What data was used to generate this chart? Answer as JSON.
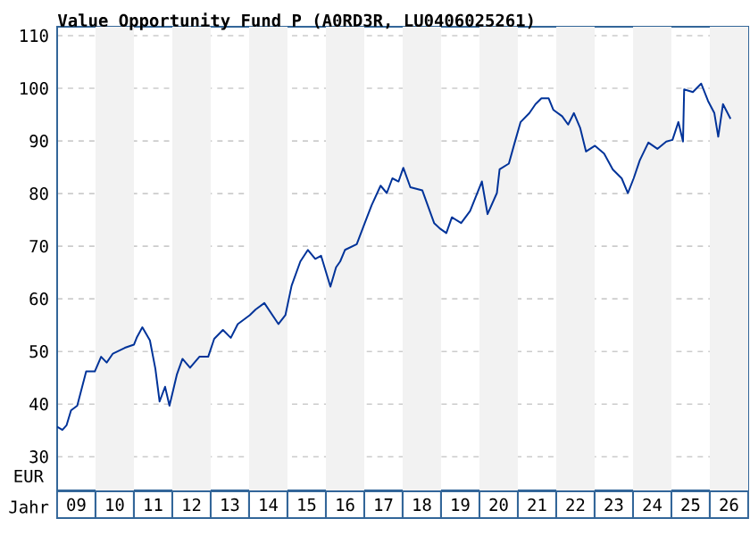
{
  "chart_data": {
    "type": "line",
    "title": "Value Opportunity Fund P (A0RD3R, LU0406025261)",
    "xlabel": "Jahr",
    "ylabel": "EUR",
    "x": [
      "2009-01-01",
      "2009-02-20",
      "2009-04-01",
      "2009-05-13",
      "2009-07-11",
      "2009-10-04",
      "2009-12-25",
      "2010-02-23",
      "2010-04-17",
      "2010-06-15",
      "2010-10-07",
      "2011-01-01",
      "2011-01-27",
      "2011-03-22",
      "2011-06-02",
      "2011-07-24",
      "2011-09-02",
      "2011-10-24",
      "2011-12-05",
      "2012-02-13",
      "2012-04-07",
      "2012-06-18",
      "2012-09-15",
      "2012-12-08",
      "2013-02-03",
      "2013-04-27",
      "2013-07-11",
      "2013-09-15",
      "2014-01-07",
      "2014-03-05",
      "2014-05-26",
      "2014-10-07",
      "2014-12-12",
      "2015-02-09",
      "2015-05-03",
      "2015-07-14",
      "2015-09-22",
      "2015-11-16",
      "2016-02-13",
      "2016-04-07",
      "2016-05-16",
      "2016-07-01",
      "2016-10-21",
      "2017-01-17",
      "2017-03-12",
      "2017-06-05",
      "2017-08-03",
      "2017-09-25",
      "2017-11-23",
      "2018-01-07",
      "2018-03-15",
      "2018-07-07",
      "2018-10-27",
      "2018-12-25",
      "2019-02-20",
      "2019-04-14",
      "2019-07-11",
      "2019-10-04",
      "2020-01-24",
      "2020-03-18",
      "2020-06-15",
      "2020-07-11",
      "2020-10-07",
      "2020-12-02",
      "2021-01-27",
      "2021-04-21",
      "2021-06-18",
      "2021-08-13",
      "2021-10-21",
      "2021-12-05",
      "2022-02-26",
      "2022-04-24",
      "2022-06-18",
      "2022-08-16",
      "2022-10-11",
      "2023-01-04",
      "2023-04-01",
      "2023-06-22",
      "2023-09-15",
      "2023-11-13",
      "2024-01-07",
      "2024-03-05",
      "2024-05-26",
      "2024-08-20",
      "2024-11-13",
      "2025-01-11",
      "2025-03-08",
      "2025-04-21",
      "2025-05-02",
      "2025-07-24",
      "2025-10-11",
      "2025-12-15",
      "2026-02-13",
      "2026-03-22",
      "2026-05-06",
      "2026-07-17"
    ],
    "values": [
      35.7,
      35.1,
      36,
      38.8,
      39.7,
      46.2,
      46.2,
      49,
      47.9,
      49.6,
      50.7,
      51.3,
      52.6,
      54.6,
      52.1,
      46.7,
      40.5,
      43.3,
      39.7,
      45.6,
      48.6,
      46.9,
      49,
      49,
      52.4,
      54.1,
      52.6,
      55.2,
      56.9,
      58,
      59.2,
      55.2,
      56.9,
      62.5,
      67.1,
      69.3,
      67.6,
      68.2,
      62.3,
      66,
      67.1,
      69.3,
      70.4,
      75,
      77.8,
      81.5,
      80.1,
      82.9,
      82.3,
      84.9,
      81.2,
      80.6,
      74.4,
      73.3,
      72.5,
      75.5,
      74.4,
      76.7,
      82.3,
      76.1,
      80.1,
      84.6,
      85.7,
      89.7,
      93.6,
      95.3,
      97,
      98.1,
      98.1,
      95.9,
      94.7,
      93.1,
      95.3,
      92.5,
      88,
      89.1,
      87.6,
      84.6,
      82.9,
      80.1,
      82.9,
      86.3,
      89.7,
      88.5,
      89.9,
      90.2,
      93.6,
      89.9,
      99.8,
      99.3,
      100.9,
      97.6,
      95.3,
      90.8,
      97,
      94.2
    ],
    "color": "#003399",
    "xlim": [
      "2009-01-01",
      "2027-01-01"
    ],
    "xticks": [
      {
        "value": "2009-07-02",
        "label": "09"
      },
      {
        "value": "2010-07-02",
        "label": "10"
      },
      {
        "value": "2011-07-02",
        "label": "11"
      },
      {
        "value": "2012-07-02",
        "label": "12"
      },
      {
        "value": "2013-07-02",
        "label": "13"
      },
      {
        "value": "2014-07-02",
        "label": "14"
      },
      {
        "value": "2015-07-02",
        "label": "15"
      },
      {
        "value": "2016-07-02",
        "label": "16"
      },
      {
        "value": "2017-07-02",
        "label": "17"
      },
      {
        "value": "2018-07-02",
        "label": "18"
      },
      {
        "value": "2019-07-02",
        "label": "19"
      },
      {
        "value": "2020-07-02",
        "label": "20"
      },
      {
        "value": "2021-07-02",
        "label": "21"
      },
      {
        "value": "2022-07-02",
        "label": "22"
      },
      {
        "value": "2023-07-02",
        "label": "23"
      },
      {
        "value": "2024-07-02",
        "label": "24"
      },
      {
        "value": "2025-07-02",
        "label": "25"
      },
      {
        "value": "2026-07-02",
        "label": "26"
      }
    ],
    "ylim": [
      23.6,
      111.7
    ],
    "yticks": [
      30,
      40,
      50,
      60,
      70,
      80,
      90,
      100,
      110
    ],
    "grid": "y",
    "bands": [
      {
        "axis": "x",
        "from": "2010-01-01",
        "to": "2011-01-01",
        "color": "#f2f2f2"
      },
      {
        "axis": "x",
        "from": "2012-01-01",
        "to": "2013-01-01",
        "color": "#f2f2f2"
      },
      {
        "axis": "x",
        "from": "2014-01-01",
        "to": "2015-01-01",
        "color": "#f2f2f2"
      },
      {
        "axis": "x",
        "from": "2016-01-01",
        "to": "2017-01-01",
        "color": "#f2f2f2"
      },
      {
        "axis": "x",
        "from": "2018-01-01",
        "to": "2019-01-01",
        "color": "#f2f2f2"
      },
      {
        "axis": "x",
        "from": "2020-01-01",
        "to": "2021-01-01",
        "color": "#f2f2f2"
      },
      {
        "axis": "x",
        "from": "2022-01-01",
        "to": "2023-01-01",
        "color": "#f2f2f2"
      },
      {
        "axis": "x",
        "from": "2024-01-01",
        "to": "2025-01-01",
        "color": "#f2f2f2"
      },
      {
        "axis": "x",
        "from": "2026-01-01",
        "to": "2027-01-01",
        "color": "#f2f2f2"
      }
    ]
  }
}
